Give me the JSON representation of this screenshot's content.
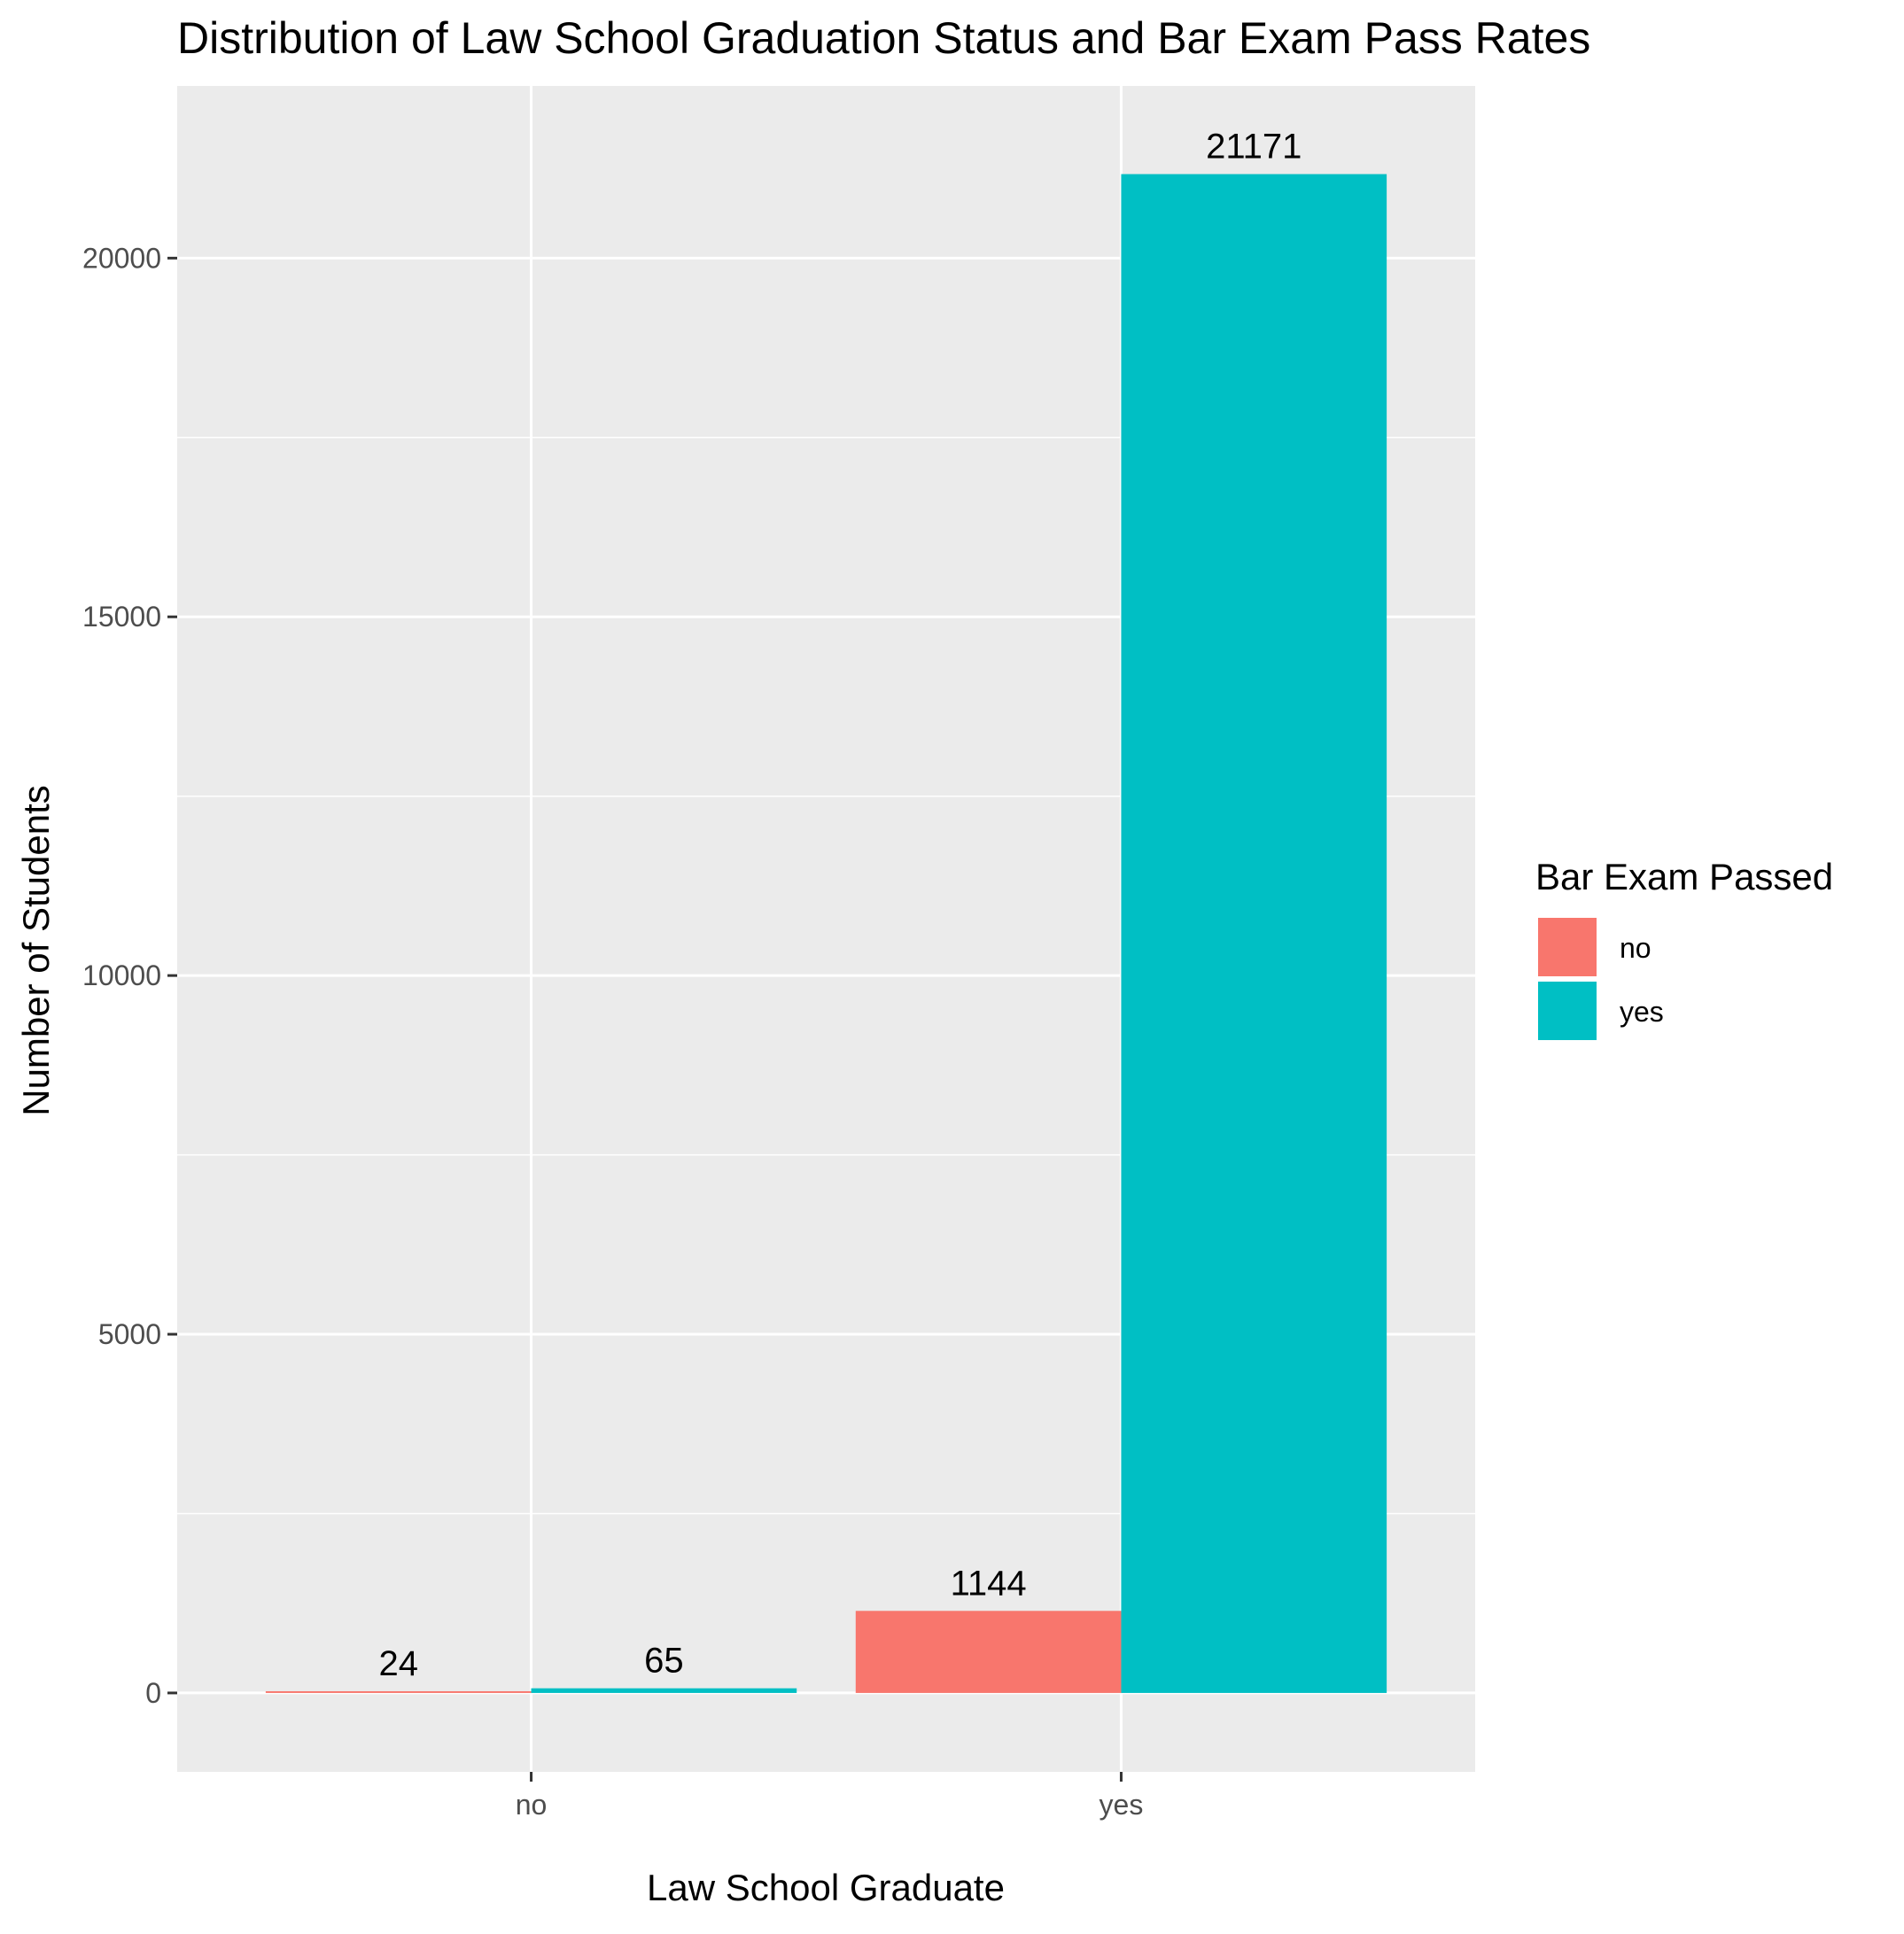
{
  "chart_data": {
    "type": "bar",
    "title": "Distribution of Law School Graduation Status and Bar Exam Pass Rates",
    "xlabel": "Law School Graduate",
    "ylabel": "Number of Students",
    "categories": [
      "no",
      "yes"
    ],
    "series": [
      {
        "name": "no",
        "color": "#F8766D",
        "values": [
          24,
          1144
        ]
      },
      {
        "name": "yes",
        "color": "#00BFC4",
        "values": [
          65,
          21171
        ]
      }
    ],
    "ylim": [
      -1100,
      22400
    ],
    "yticks": [
      0,
      5000,
      10000,
      15000,
      20000
    ],
    "ytick_labels": [
      "0",
      "5000",
      "10000",
      "15000",
      "20000"
    ],
    "legend": {
      "title": "Bar Exam Passed",
      "position": "right"
    },
    "grid": true,
    "panel_background": "#EBEBEB",
    "grid_color": "#FFFFFF"
  }
}
